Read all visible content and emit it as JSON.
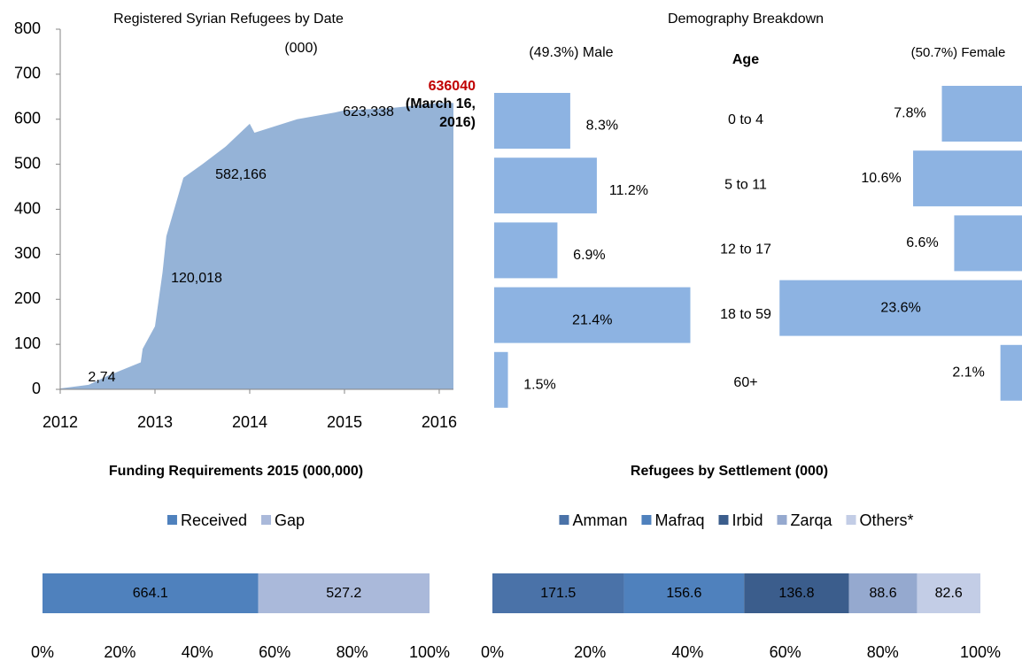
{
  "chart_data": [
    {
      "type": "area",
      "title": "Registered Syrian Refugees by Date",
      "subtitle": "(000)",
      "x": [
        2012.0,
        2012.3,
        2012.5,
        2012.85,
        2012.87,
        2013.0,
        2013.08,
        2013.12,
        2013.3,
        2013.5,
        2013.75,
        2014.0,
        2014.05,
        2014.5,
        2014.9,
        2015.0,
        2015.5,
        2016.0,
        2016.15
      ],
      "values": [
        2,
        10,
        30,
        60,
        90,
        140,
        260,
        340,
        470,
        500,
        540,
        590,
        570,
        600,
        615,
        620,
        625,
        636,
        636
      ],
      "color": "#95b3d7",
      "xlim": [
        2012,
        2016.15
      ],
      "xticks": [
        2012,
        2013,
        2014,
        2015,
        2016
      ],
      "ylim": [
        0,
        800
      ],
      "yticks": [
        0,
        100,
        200,
        300,
        400,
        500,
        600,
        700,
        800
      ],
      "annotations": [
        {
          "text": "2,74"
        },
        {
          "text": "120,018"
        },
        {
          "text": "582,166"
        },
        {
          "text": "623,338"
        },
        {
          "text": "636040",
          "color": "#c00000"
        },
        {
          "text": "(March 16,"
        },
        {
          "text": "2016)"
        }
      ]
    },
    {
      "type": "butterfly",
      "title": "Demography Breakdown",
      "left_label": "(49.3%) Male",
      "center_label": "Age",
      "right_label": "(50.7%) Female",
      "categories": [
        "0 to 4",
        "5 to 11",
        "12 to 17",
        "18 to 59",
        "60+"
      ],
      "series": [
        {
          "color": "#8db3e2",
          "values": [
            8.3,
            11.2,
            6.9,
            21.4,
            1.5
          ],
          "value_labels": [
            "8.3%",
            "11.2%",
            "6.9%",
            "21.4%",
            "1.5%"
          ]
        },
        {
          "color": "#8db3e2",
          "values": [
            7.8,
            10.6,
            6.6,
            23.6,
            2.1
          ],
          "value_labels": [
            "7.8%",
            "10.6%",
            "6.6%",
            "23.6%",
            "2.1%"
          ]
        }
      ]
    },
    {
      "type": "stacked_bar_100",
      "title": "Funding Requirements 2015 (000,000)",
      "series": [
        {
          "name": "Received",
          "color": "#4f81bd",
          "values": [
            664.1
          ]
        },
        {
          "name": "Gap",
          "color": "#aab9da",
          "values": [
            527.2
          ]
        }
      ],
      "xlim": [
        0,
        100
      ],
      "xticks": [
        {
          "value": 0,
          "label": "0%"
        },
        {
          "value": 20,
          "label": "20%"
        },
        {
          "value": 40,
          "label": "40%"
        },
        {
          "value": 60,
          "label": "60%"
        },
        {
          "value": 80,
          "label": "80%"
        },
        {
          "value": 100,
          "label": "100%"
        }
      ]
    },
    {
      "type": "stacked_bar_100",
      "title": "Refugees by Settlement  (000)",
      "series": [
        {
          "name": "Amman",
          "color": "#4a72a8",
          "values": [
            171.5
          ]
        },
        {
          "name": "Mafraq",
          "color": "#4f81bd",
          "values": [
            156.6
          ]
        },
        {
          "name": "Irbid",
          "color": "#3b5d8c",
          "values": [
            136.8
          ]
        },
        {
          "name": "Zarqa",
          "color": "#95a9cf",
          "values": [
            88.6
          ]
        },
        {
          "name": "Others*",
          "color": "#c3cde6",
          "values": [
            82.6
          ]
        }
      ],
      "xlim": [
        0,
        100
      ],
      "xticks": [
        {
          "value": 0,
          "label": "0%"
        },
        {
          "value": 20,
          "label": "20%"
        },
        {
          "value": 40,
          "label": "40%"
        },
        {
          "value": 60,
          "label": "60%"
        },
        {
          "value": 80,
          "label": "80%"
        },
        {
          "value": 100,
          "label": "100%"
        }
      ]
    }
  ]
}
